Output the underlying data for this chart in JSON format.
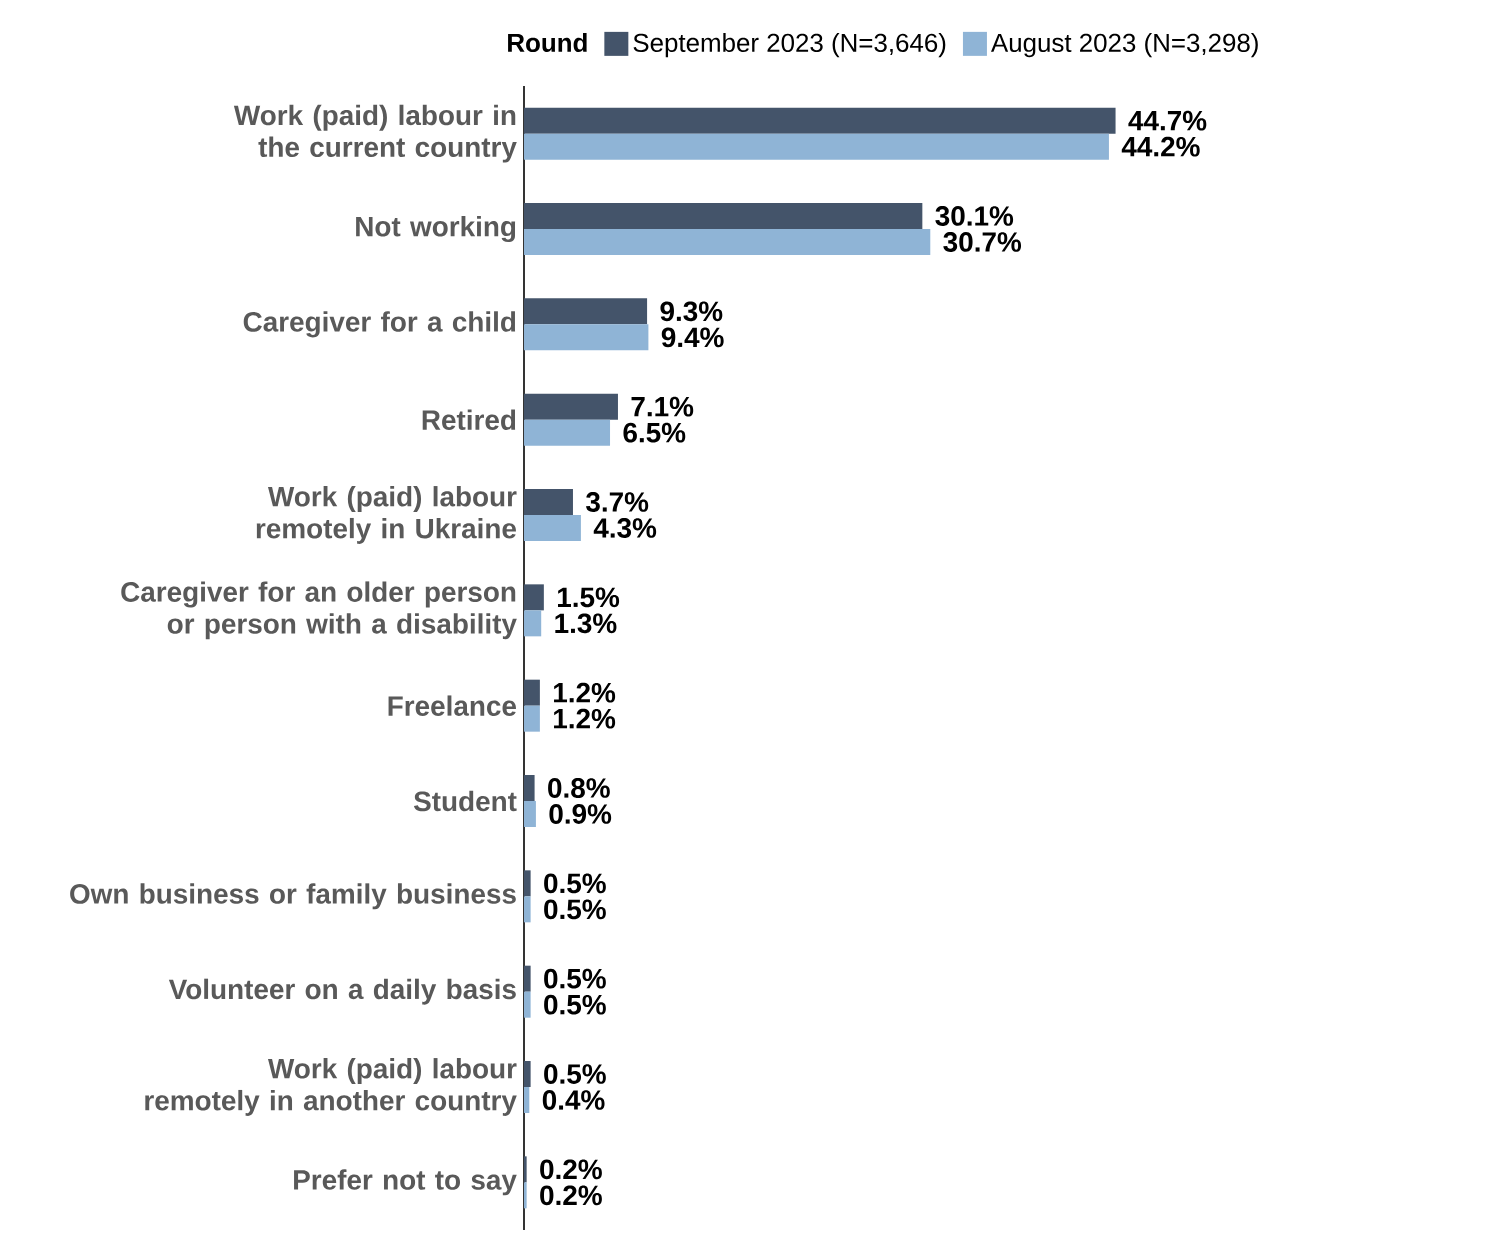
{
  "chart_data": {
    "type": "bar",
    "orientation": "horizontal",
    "legend_title": "Round",
    "legend": "top",
    "categories": [
      "Work (paid) labour in the current country",
      "Not working",
      "Caregiver for a child",
      "Retired",
      "Work (paid) labour remotely in Ukraine",
      "Caregiver for an older person or person with a disability",
      "Freelance",
      "Student",
      "Own business or family business",
      "Volunteer on a daily basis",
      "Work (paid) labour remotely in another country",
      "Prefer not to say"
    ],
    "series": [
      {
        "name": "September 2023 (N=3,646)",
        "color": "#44546a",
        "values": [
          44.7,
          30.1,
          9.3,
          7.1,
          3.7,
          1.5,
          1.2,
          0.8,
          0.5,
          0.5,
          0.5,
          0.2
        ],
        "value_labels": [
          "44.7%",
          "30.1%",
          "9.3%",
          "7.1%",
          "3.7%",
          "1.5%",
          "1.2%",
          "0.8%",
          "0.5%",
          "0.5%",
          "0.5%",
          "0.2%"
        ]
      },
      {
        "name": "August 2023 (N=3,298)",
        "color": "#8fb4d6",
        "values": [
          44.2,
          30.7,
          9.4,
          6.5,
          4.3,
          1.3,
          1.2,
          0.9,
          0.5,
          0.5,
          0.4,
          0.2
        ],
        "value_labels": [
          "44.2%",
          "30.7%",
          "9.4%",
          "6.5%",
          "4.3%",
          "1.3%",
          "1.2%",
          "0.9%",
          "0.5%",
          "0.5%",
          "0.4%",
          "0.2%"
        ]
      }
    ]
  }
}
